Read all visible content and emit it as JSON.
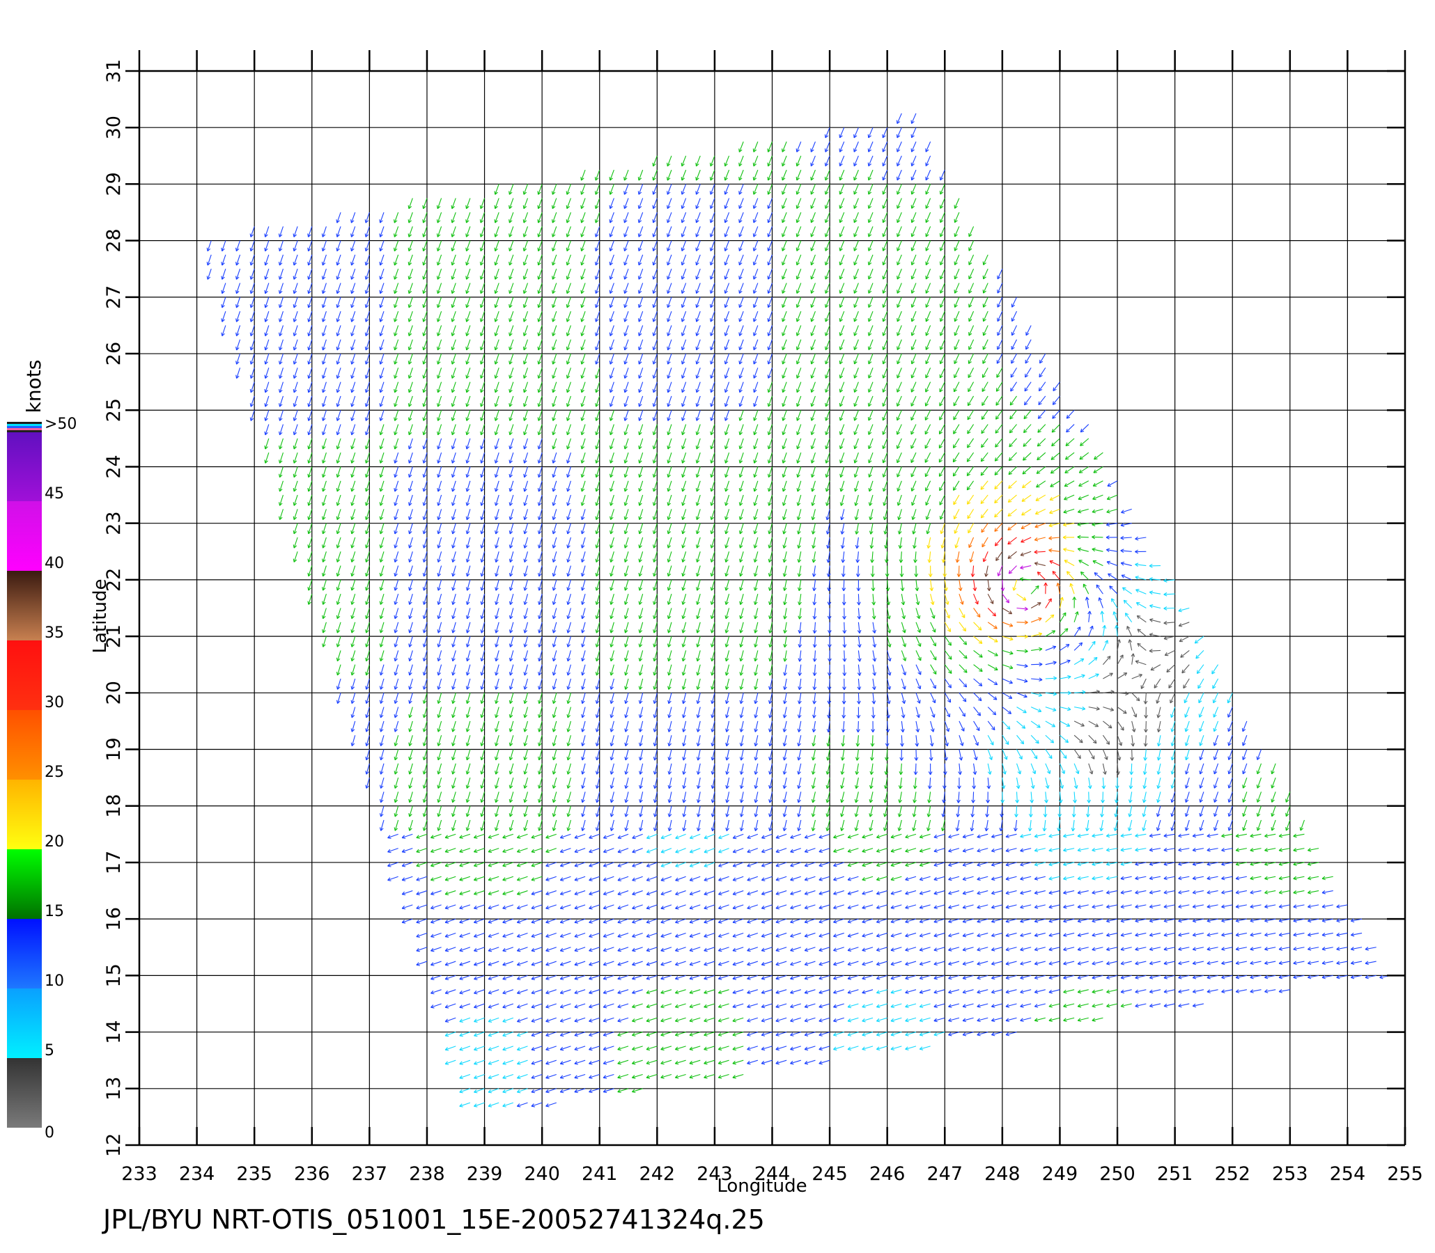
{
  "caption": "JPL/BYU NRT-OTIS_051001_15E-20052741324q.25",
  "chart_data": {
    "type": "vector-field",
    "xlabel": "Longitude",
    "ylabel": "Latitude",
    "xlim": [
      233,
      255
    ],
    "ylim": [
      12,
      31
    ],
    "x_ticks": [
      "233",
      "234",
      "235",
      "236",
      "237",
      "238",
      "239",
      "240",
      "241",
      "242",
      "243",
      "244",
      "245",
      "246",
      "247",
      "248",
      "249",
      "250",
      "251",
      "252",
      "253",
      "254",
      "255"
    ],
    "y_ticks": [
      "12",
      "13",
      "14",
      "15",
      "16",
      "17",
      "18",
      "19",
      "20",
      "21",
      "22",
      "23",
      "24",
      "25",
      "26",
      "27",
      "28",
      "29",
      "30",
      "31"
    ],
    "grid": true,
    "colorbar": {
      "title": "knots",
      "labels": [
        "0",
        "5",
        "10",
        "15",
        "20",
        "25",
        "30",
        "35",
        "40",
        "45",
        ">50"
      ],
      "stops": [
        {
          "from": 0,
          "to": 5,
          "colors": [
            "#7a7a7a",
            "#333333"
          ]
        },
        {
          "from": 5,
          "to": 10,
          "colors": [
            "#00f0ff",
            "#0aa0ff"
          ]
        },
        {
          "from": 10,
          "to": 15,
          "colors": [
            "#1e78ff",
            "#0010ff"
          ]
        },
        {
          "from": 15,
          "to": 20,
          "colors": [
            "#007000",
            "#00ff00"
          ]
        },
        {
          "from": 20,
          "to": 25,
          "colors": [
            "#ffff10",
            "#ffb400"
          ]
        },
        {
          "from": 25,
          "to": 30,
          "colors": [
            "#ff9000",
            "#ff5000"
          ]
        },
        {
          "from": 30,
          "to": 35,
          "colors": [
            "#ff3010",
            "#ff1010"
          ]
        },
        {
          "from": 35,
          "to": 40,
          "colors": [
            "#c88050",
            "#3a1a10"
          ]
        },
        {
          "from": 40,
          "to": 45,
          "colors": [
            "#ff00ff",
            "#d010e8"
          ]
        },
        {
          "from": 45,
          "to": 50,
          "colors": [
            "#a010d8",
            "#6010c0"
          ]
        }
      ]
    },
    "storm_center": {
      "lon": 248.4,
      "lat": 21.9
    },
    "swath_corners": [
      [
        234.0,
        28.1
      ],
      [
        246.5,
        30.3
      ],
      [
        254.8,
        15.0
      ],
      [
        238.8,
        12.5
      ]
    ],
    "wind_speed_classes_knots": [
      {
        "color": "#5a5a5a",
        "min": 0,
        "max": 5
      },
      {
        "color": "#10d8ff",
        "min": 5,
        "max": 10
      },
      {
        "color": "#1a40ff",
        "min": 10,
        "max": 15
      },
      {
        "color": "#10c010",
        "min": 15,
        "max": 20
      },
      {
        "color": "#ffe000",
        "min": 20,
        "max": 25
      },
      {
        "color": "#ff7000",
        "min": 25,
        "max": 30
      },
      {
        "color": "#ff1010",
        "min": 30,
        "max": 35
      },
      {
        "color": "#704030",
        "min": 35,
        "max": 40
      },
      {
        "color": "#c010e0",
        "min": 40,
        "max": 50
      }
    ]
  }
}
